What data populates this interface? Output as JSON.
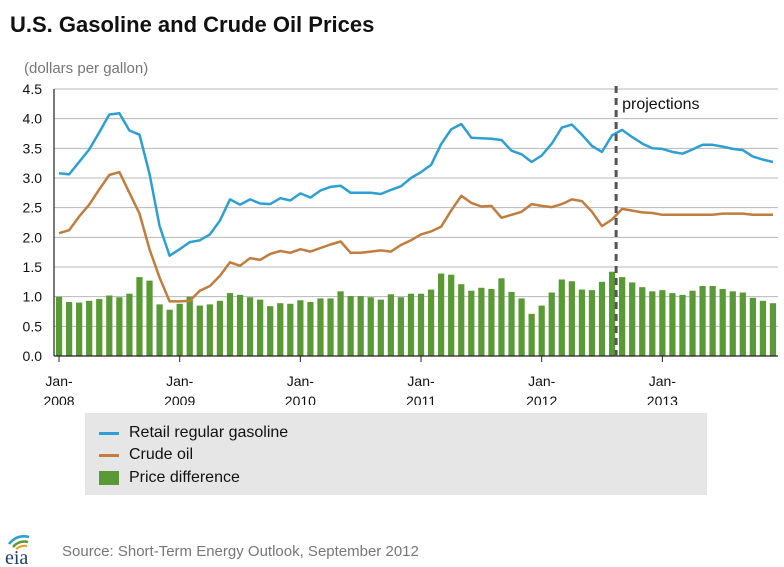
{
  "title": "U.S. Gasoline and Crude Oil Prices",
  "source": "Source: Short-Term Energy Outlook, September 2012",
  "logo_text": "eia",
  "chart_data": {
    "type": "line",
    "unit_label": "(dollars per gallon)",
    "ylim": [
      0,
      4.5
    ],
    "yticks": [
      "0.0",
      "0.5",
      "1.0",
      "1.5",
      "2.0",
      "2.5",
      "3.0",
      "3.5",
      "4.0",
      "4.5"
    ],
    "xticks": [
      {
        "line1": "Jan-",
        "line2": "2008"
      },
      {
        "line1": "Jan-",
        "line2": "2009"
      },
      {
        "line1": "Jan-",
        "line2": "2010"
      },
      {
        "line1": "Jan-",
        "line2": "2011"
      },
      {
        "line1": "Jan-",
        "line2": "2012"
      },
      {
        "line1": "Jan-",
        "line2": "2013"
      }
    ],
    "x_start": "2008-01",
    "x_end": "2013-12",
    "projection_start": "2012-09",
    "projection_label": "projections",
    "grid": true,
    "legend_position": "bottom",
    "colors": {
      "gasoline": "#2e9fd3",
      "crude": "#c07d3e",
      "difference": "#5a9a36",
      "grid": "#b7b7b7",
      "projection_line": "#555555"
    },
    "series": [
      {
        "name": "Retail regular gasoline",
        "kind": "line",
        "values": [
          3.08,
          3.06,
          3.27,
          3.48,
          3.77,
          4.07,
          4.09,
          3.8,
          3.73,
          3.07,
          2.19,
          1.69,
          1.8,
          1.92,
          1.95,
          2.05,
          2.28,
          2.64,
          2.55,
          2.64,
          2.57,
          2.56,
          2.66,
          2.62,
          2.74,
          2.67,
          2.79,
          2.85,
          2.87,
          2.75,
          2.75,
          2.75,
          2.73,
          2.8,
          2.86,
          3.0,
          3.1,
          3.22,
          3.57,
          3.82,
          3.91,
          3.68,
          3.67,
          3.66,
          3.64,
          3.46,
          3.4,
          3.27,
          3.38,
          3.58,
          3.85,
          3.9,
          3.73,
          3.54,
          3.44,
          3.72,
          3.81,
          3.69,
          3.58,
          3.5,
          3.49,
          3.44,
          3.41,
          3.48,
          3.56,
          3.56,
          3.53,
          3.49,
          3.47,
          3.36,
          3.31,
          3.27
        ]
      },
      {
        "name": "Crude oil",
        "kind": "line",
        "values": [
          2.07,
          2.12,
          2.35,
          2.55,
          2.81,
          3.05,
          3.1,
          2.75,
          2.4,
          1.8,
          1.32,
          0.92,
          0.92,
          0.93,
          1.1,
          1.18,
          1.35,
          1.58,
          1.52,
          1.65,
          1.62,
          1.72,
          1.77,
          1.74,
          1.8,
          1.76,
          1.82,
          1.88,
          1.93,
          1.74,
          1.74,
          1.76,
          1.78,
          1.76,
          1.87,
          1.95,
          2.05,
          2.1,
          2.18,
          2.45,
          2.7,
          2.58,
          2.52,
          2.53,
          2.33,
          2.38,
          2.43,
          2.56,
          2.53,
          2.51,
          2.56,
          2.64,
          2.61,
          2.43,
          2.19,
          2.3,
          2.48,
          2.45,
          2.42,
          2.41,
          2.38,
          2.38,
          2.38,
          2.38,
          2.38,
          2.38,
          2.4,
          2.4,
          2.4,
          2.38,
          2.38,
          2.38
        ]
      },
      {
        "name": "Price difference",
        "kind": "bar",
        "values": [
          1.0,
          0.91,
          0.9,
          0.93,
          0.96,
          1.02,
          0.99,
          1.05,
          1.33,
          1.27,
          0.87,
          0.78,
          0.88,
          1.0,
          0.85,
          0.87,
          0.93,
          1.06,
          1.03,
          0.99,
          0.95,
          0.84,
          0.89,
          0.88,
          0.94,
          0.91,
          0.97,
          0.97,
          1.09,
          1.01,
          1.01,
          0.99,
          0.95,
          1.04,
          0.99,
          1.05,
          1.05,
          1.12,
          1.39,
          1.37,
          1.21,
          1.1,
          1.15,
          1.13,
          1.31,
          1.08,
          0.97,
          0.71,
          0.85,
          1.07,
          1.29,
          1.26,
          1.12,
          1.11,
          1.25,
          1.42,
          1.33,
          1.24,
          1.16,
          1.09,
          1.11,
          1.06,
          1.03,
          1.1,
          1.18,
          1.18,
          1.13,
          1.09,
          1.07,
          0.98,
          0.93,
          0.89
        ]
      }
    ]
  }
}
